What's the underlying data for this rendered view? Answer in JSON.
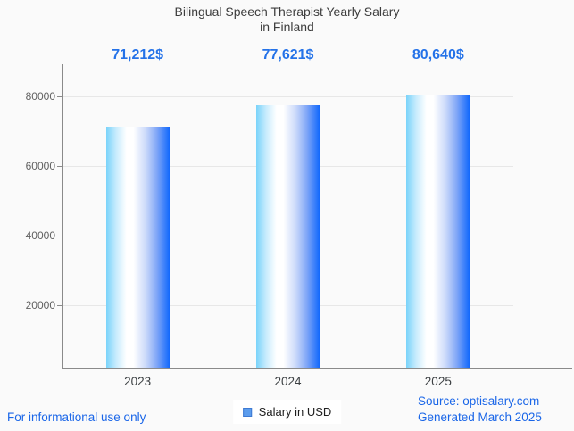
{
  "title": {
    "line1": "Bilingual Speech Therapist Yearly Salary",
    "line2": "in Finland"
  },
  "chart_data": {
    "type": "bar",
    "title": "Bilingual Speech Therapist Yearly Salary in Finland",
    "categories": [
      "2023",
      "2024",
      "2025"
    ],
    "values": [
      71212,
      77621,
      80640
    ],
    "value_labels": [
      "71,212$",
      "77,621$",
      "80,640$"
    ],
    "series_name": "Salary in USD",
    "xlabel": "",
    "ylabel": "",
    "yticks": [
      20000,
      40000,
      60000,
      80000
    ],
    "ytick_labels": [
      "20000",
      "40000",
      "60000",
      "80000"
    ],
    "ylim": [
      0,
      89400
    ],
    "grid": "horizontal",
    "legend_position": "bottom"
  },
  "legend": {
    "label": "Salary in USD"
  },
  "footer": {
    "disclaimer": "For informational use only",
    "source": "Source: optisalary.com",
    "generated": "Generated March 2025"
  },
  "colors": {
    "background": "#fafafa",
    "title_text": "#3d3d3d",
    "accent_value_label": "#2472e8",
    "footer_link_blue": "#1a66e8",
    "bar_gradient_left": "#79d3fa",
    "bar_gradient_right": "#1168fc",
    "legend_marker_fill": "#5c9ded",
    "legend_marker_border": "#3e7ad3",
    "gridline": "#e7e7e7",
    "axis_line": "#8a8a8a",
    "tick_label": "#606060",
    "x_label": "#3c4043"
  }
}
